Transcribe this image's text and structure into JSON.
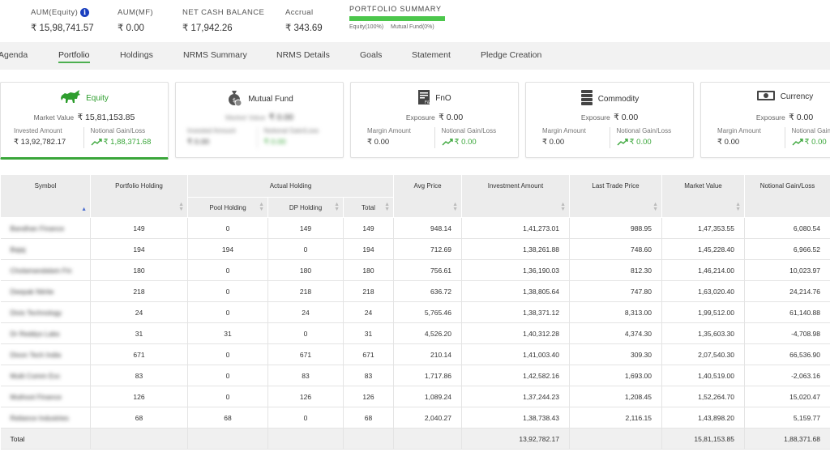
{
  "summary": {
    "aum_equity_label": "AUM(Equity)",
    "aum_equity_value": "₹ 15,98,741.57",
    "aum_mf_label": "AUM(MF)",
    "aum_mf_value": "₹ 0.00",
    "net_cash_label": "NET CASH BALANCE",
    "net_cash_value": "₹ 17,942.26",
    "accrual_label": "Accrual",
    "accrual_value": "₹ 343.69",
    "portfolio_summary_label": "PORTFOLIO SUMMARY",
    "portfolio_equity_share": 1.0,
    "legend_equity": "Equity(100%)",
    "legend_mf": "Mutual Fund(0%)",
    "bar_color": "#4cc74c"
  },
  "tabs": [
    {
      "label": "Agenda"
    },
    {
      "label": "Portfolio",
      "active": true
    },
    {
      "label": "Holdings"
    },
    {
      "label": "NRMS Summary"
    },
    {
      "label": "NRMS Details"
    },
    {
      "label": "Goals"
    },
    {
      "label": "Statement"
    },
    {
      "label": "Pledge Creation"
    }
  ],
  "cards": {
    "equity": {
      "title": "Equity",
      "icon": "bull-icon",
      "metric_label": "Market Value",
      "metric_value": "₹ 15,81,153.85",
      "left_label": "Invested Amount",
      "left_value": "₹ 13,92,782.17",
      "right_label": "Notional Gain/Loss",
      "right_value": "₹ 1,88,371.68"
    },
    "mutual_fund": {
      "title": "Mutual Fund",
      "icon": "money-bag-icon",
      "metric_label": "Market Value",
      "metric_value": "₹ 0.00",
      "left_label": "Invested Amount",
      "left_value": "₹ 0.00",
      "right_label": "Notional Gain/Loss",
      "right_value": "₹ 0.00"
    },
    "fno": {
      "title": "FnO",
      "icon": "document-icon",
      "metric_label": "Exposure",
      "metric_value": "₹ 0.00",
      "left_label": "Margin Amount",
      "left_value": "₹ 0.00",
      "right_label": "Notional Gain/Loss",
      "right_value": "₹ 0.00"
    },
    "commodity": {
      "title": "Commodity",
      "icon": "stack-icon",
      "metric_label": "Exposure",
      "metric_value": "₹ 0.00",
      "left_label": "Margin Amount",
      "left_value": "₹ 0.00",
      "right_label": "Notional Gain/Loss",
      "right_value": "₹ 0.00"
    },
    "currency": {
      "title": "Currency",
      "icon": "banknote-icon",
      "metric_label": "Exposure",
      "metric_value": "₹ 0.00",
      "left_label": "Margin Amount",
      "left_value": "₹ 0.00",
      "right_label": "Notional Gain/Loss",
      "right_value": "₹ 0.00"
    }
  },
  "table": {
    "headers": {
      "symbol": "Symbol",
      "portfolio_holding": "Portfolio Holding",
      "actual_holding": "Actual Holding",
      "pool_holding": "Pool Holding",
      "dp_holding": "DP Holding",
      "total": "Total",
      "avg_price": "Avg Price",
      "investment_amount": "Investment Amount",
      "last_trade_price": "Last Trade Price",
      "market_value": "Market Value",
      "notional_gain_loss": "Notional Gain/Loss"
    },
    "rows": [
      {
        "symbol": "Bandhan Finance",
        "ph": "149",
        "pool": "0",
        "dp": "149",
        "total": "149",
        "avg": "948.14",
        "inv": "1,41,273.01",
        "ltp": "988.95",
        "mv": "1,47,353.55",
        "gain": "6,080.54"
      },
      {
        "symbol": "Bajaj",
        "ph": "194",
        "pool": "194",
        "dp": "0",
        "total": "194",
        "avg": "712.69",
        "inv": "1,38,261.88",
        "ltp": "748.60",
        "mv": "1,45,228.40",
        "gain": "6,966.52"
      },
      {
        "symbol": "Cholamandalam Fin",
        "ph": "180",
        "pool": "0",
        "dp": "180",
        "total": "180",
        "avg": "756.61",
        "inv": "1,36,190.03",
        "ltp": "812.30",
        "mv": "1,46,214.00",
        "gain": "10,023.97"
      },
      {
        "symbol": "Deepak Nitrite",
        "ph": "218",
        "pool": "0",
        "dp": "218",
        "total": "218",
        "avg": "636.72",
        "inv": "1,38,805.64",
        "ltp": "747.80",
        "mv": "1,63,020.40",
        "gain": "24,214.76"
      },
      {
        "symbol": "Divis Technology",
        "ph": "24",
        "pool": "0",
        "dp": "24",
        "total": "24",
        "avg": "5,765.46",
        "inv": "1,38,371.12",
        "ltp": "8,313.00",
        "mv": "1,99,512.00",
        "gain": "61,140.88"
      },
      {
        "symbol": "Dr Reddys Labs",
        "ph": "31",
        "pool": "31",
        "dp": "0",
        "total": "31",
        "avg": "4,526.20",
        "inv": "1,40,312.28",
        "ltp": "4,374.30",
        "mv": "1,35,603.30",
        "gain": "-4,708.98"
      },
      {
        "symbol": "Dixon Tech India",
        "ph": "671",
        "pool": "0",
        "dp": "671",
        "total": "671",
        "avg": "210.14",
        "inv": "1,41,003.40",
        "ltp": "309.30",
        "mv": "2,07,540.30",
        "gain": "66,536.90"
      },
      {
        "symbol": "Multi Comm Exc",
        "ph": "83",
        "pool": "0",
        "dp": "83",
        "total": "83",
        "avg": "1,717.86",
        "inv": "1,42,582.16",
        "ltp": "1,693.00",
        "mv": "1,40,519.00",
        "gain": "-2,063.16"
      },
      {
        "symbol": "Muthoot Finance",
        "ph": "126",
        "pool": "0",
        "dp": "126",
        "total": "126",
        "avg": "1,089.24",
        "inv": "1,37,244.23",
        "ltp": "1,208.45",
        "mv": "1,52,264.70",
        "gain": "15,020.47"
      },
      {
        "symbol": "Reliance Industries",
        "ph": "68",
        "pool": "68",
        "dp": "0",
        "total": "68",
        "avg": "2,040.27",
        "inv": "1,38,738.43",
        "ltp": "2,116.15",
        "mv": "1,43,898.20",
        "gain": "5,159.77"
      }
    ],
    "total_row": {
      "label": "Total",
      "inv": "13,92,782.17",
      "mv": "15,81,153.85",
      "gain": "1,88,371.68"
    }
  }
}
